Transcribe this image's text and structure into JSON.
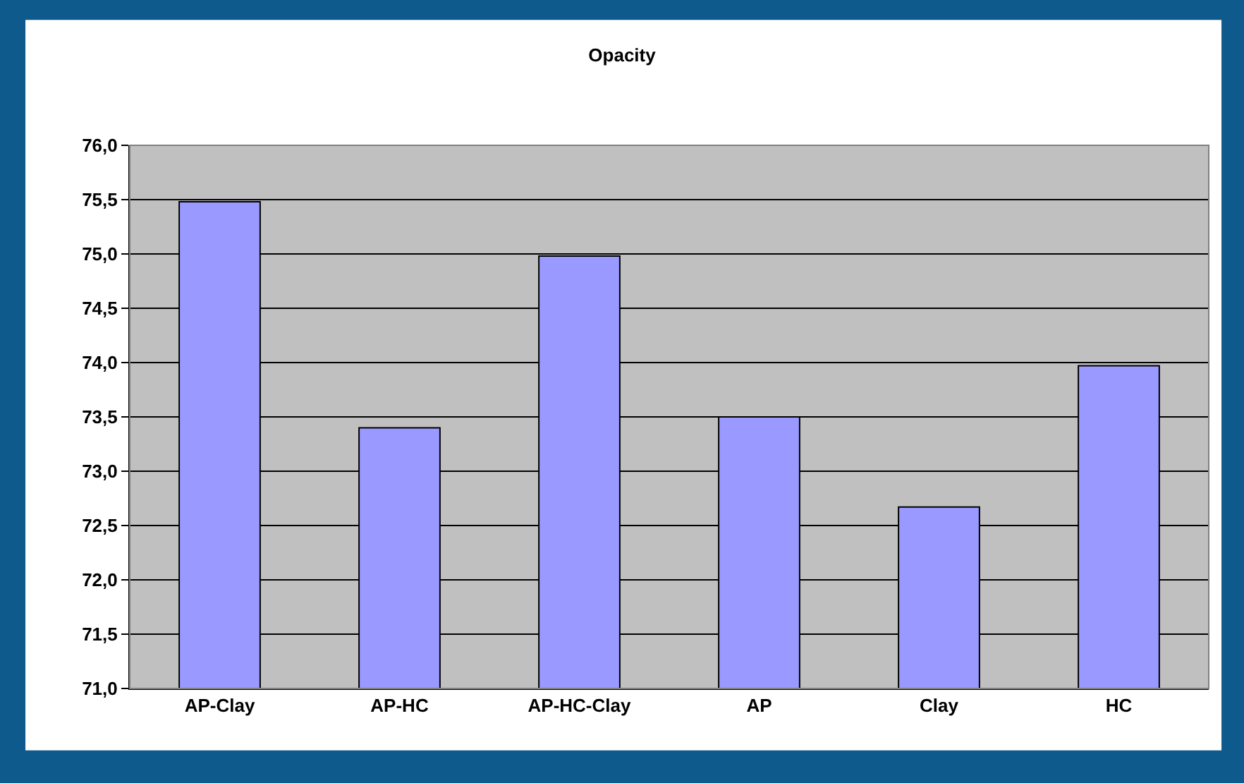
{
  "chart_data": {
    "type": "bar",
    "title": "Opacity",
    "categories": [
      "AP-Clay",
      "AP-HC",
      "AP-HC-Clay",
      "AP",
      "Clay",
      "HC"
    ],
    "values": [
      75.48,
      73.4,
      74.98,
      73.5,
      72.67,
      73.97
    ],
    "color": "#9999ff",
    "ylim": [
      71.0,
      76.0
    ],
    "yticks": [
      {
        "value": 71.0,
        "label": "71,0"
      },
      {
        "value": 71.5,
        "label": "71,5"
      },
      {
        "value": 72.0,
        "label": "72,0"
      },
      {
        "value": 72.5,
        "label": "72,5"
      },
      {
        "value": 73.0,
        "label": "73,0"
      },
      {
        "value": 73.5,
        "label": "73,5"
      },
      {
        "value": 74.0,
        "label": "74,0"
      },
      {
        "value": 74.5,
        "label": "74,5"
      },
      {
        "value": 75.0,
        "label": "75,0"
      },
      {
        "value": 75.5,
        "label": "75,5"
      },
      {
        "value": 76.0,
        "label": "76,0"
      }
    ],
    "grid": "y"
  }
}
